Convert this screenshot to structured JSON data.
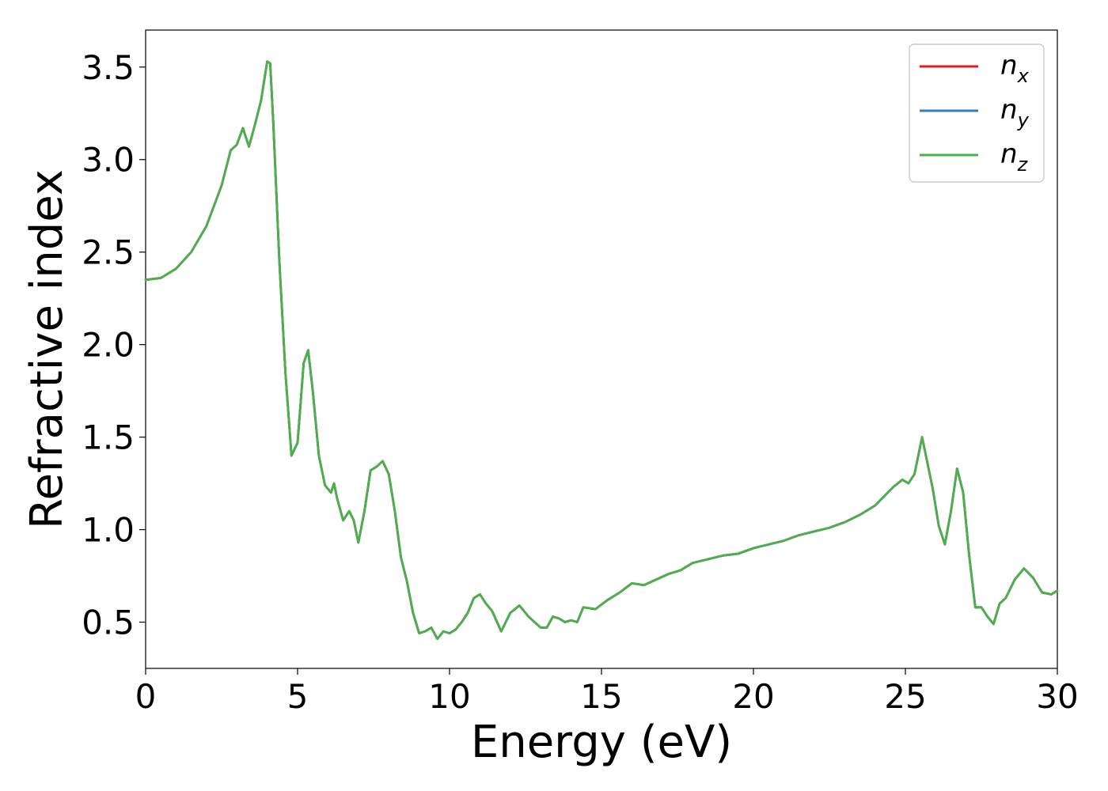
{
  "chart_data": {
    "type": "line",
    "title": "",
    "xlabel": "Energy (eV)",
    "ylabel": "Refractive index",
    "xlim": [
      0,
      30
    ],
    "ylim": [
      0.25,
      3.7
    ],
    "x_ticks": [
      0,
      5,
      10,
      15,
      20,
      25,
      30
    ],
    "y_ticks": [
      0.5,
      1.0,
      1.5,
      2.0,
      2.5,
      3.0,
      3.5
    ],
    "x_tick_labels": [
      "0",
      "5",
      "10",
      "15",
      "20",
      "25",
      "30"
    ],
    "y_tick_labels": [
      "0.5",
      "1.0",
      "1.5",
      "2.0",
      "2.5",
      "3.0",
      "3.5"
    ],
    "grid": false,
    "legend_position": "top-right",
    "series": [
      {
        "name": "n_x",
        "legend_base": "n",
        "legend_sub": "x",
        "color": "#e41a1c",
        "x": [
          0,
          0.5,
          1.0,
          1.5,
          2.0,
          2.5,
          2.8,
          3.0,
          3.2,
          3.4,
          3.6,
          3.8,
          4.0,
          4.1,
          4.2,
          4.4,
          4.6,
          4.8,
          5.0,
          5.2,
          5.35,
          5.5,
          5.7,
          5.9,
          6.1,
          6.2,
          6.3,
          6.5,
          6.7,
          6.85,
          7.0,
          7.2,
          7.4,
          7.6,
          7.8,
          8.0,
          8.2,
          8.4,
          8.6,
          8.8,
          9.0,
          9.2,
          9.4,
          9.6,
          9.8,
          10.0,
          10.2,
          10.4,
          10.6,
          10.8,
          11.0,
          11.2,
          11.4,
          11.7,
          12.0,
          12.3,
          12.6,
          13.0,
          13.2,
          13.4,
          13.6,
          13.8,
          14.0,
          14.2,
          14.4,
          14.8,
          15.2,
          15.6,
          16.0,
          16.4,
          16.8,
          17.2,
          17.6,
          18.0,
          18.5,
          19.0,
          19.5,
          20.0,
          20.5,
          21.0,
          21.5,
          22.0,
          22.5,
          23.0,
          23.5,
          24.0,
          24.3,
          24.6,
          24.9,
          25.1,
          25.3,
          25.55,
          25.7,
          25.9,
          26.1,
          26.3,
          26.5,
          26.7,
          26.9,
          27.1,
          27.3,
          27.5,
          27.7,
          27.9,
          28.1,
          28.3,
          28.6,
          28.9,
          29.2,
          29.5,
          29.8,
          30.0
        ],
        "y": [
          2.35,
          2.36,
          2.41,
          2.5,
          2.64,
          2.86,
          3.05,
          3.08,
          3.17,
          3.07,
          3.19,
          3.32,
          3.53,
          3.52,
          3.2,
          2.45,
          1.85,
          1.4,
          1.47,
          1.9,
          1.97,
          1.75,
          1.4,
          1.24,
          1.2,
          1.25,
          1.17,
          1.05,
          1.1,
          1.05,
          0.93,
          1.1,
          1.32,
          1.34,
          1.37,
          1.3,
          1.1,
          0.85,
          0.72,
          0.55,
          0.44,
          0.45,
          0.47,
          0.41,
          0.45,
          0.44,
          0.46,
          0.5,
          0.55,
          0.63,
          0.65,
          0.6,
          0.56,
          0.45,
          0.55,
          0.59,
          0.53,
          0.47,
          0.47,
          0.53,
          0.52,
          0.5,
          0.51,
          0.5,
          0.58,
          0.57,
          0.62,
          0.66,
          0.71,
          0.7,
          0.73,
          0.76,
          0.78,
          0.82,
          0.84,
          0.86,
          0.87,
          0.9,
          0.92,
          0.94,
          0.97,
          0.99,
          1.01,
          1.04,
          1.08,
          1.13,
          1.18,
          1.23,
          1.27,
          1.25,
          1.3,
          1.5,
          1.38,
          1.22,
          1.02,
          0.92,
          1.1,
          1.33,
          1.2,
          0.86,
          0.58,
          0.58,
          0.53,
          0.49,
          0.6,
          0.63,
          0.73,
          0.79,
          0.74,
          0.66,
          0.65,
          0.67
        ]
      },
      {
        "name": "n_y",
        "legend_base": "n",
        "legend_sub": "y",
        "color": "#377eb8",
        "x": [
          0,
          0.5,
          1.0,
          1.5,
          2.0,
          2.5,
          2.8,
          3.0,
          3.2,
          3.4,
          3.6,
          3.8,
          4.0,
          4.1,
          4.2,
          4.4,
          4.6,
          4.8,
          5.0,
          5.2,
          5.35,
          5.5,
          5.7,
          5.9,
          6.1,
          6.2,
          6.3,
          6.5,
          6.7,
          6.85,
          7.0,
          7.2,
          7.4,
          7.6,
          7.8,
          8.0,
          8.2,
          8.4,
          8.6,
          8.8,
          9.0,
          9.2,
          9.4,
          9.6,
          9.8,
          10.0,
          10.2,
          10.4,
          10.6,
          10.8,
          11.0,
          11.2,
          11.4,
          11.7,
          12.0,
          12.3,
          12.6,
          13.0,
          13.2,
          13.4,
          13.6,
          13.8,
          14.0,
          14.2,
          14.4,
          14.8,
          15.2,
          15.6,
          16.0,
          16.4,
          16.8,
          17.2,
          17.6,
          18.0,
          18.5,
          19.0,
          19.5,
          20.0,
          20.5,
          21.0,
          21.5,
          22.0,
          22.5,
          23.0,
          23.5,
          24.0,
          24.3,
          24.6,
          24.9,
          25.1,
          25.3,
          25.55,
          25.7,
          25.9,
          26.1,
          26.3,
          26.5,
          26.7,
          26.9,
          27.1,
          27.3,
          27.5,
          27.7,
          27.9,
          28.1,
          28.3,
          28.6,
          28.9,
          29.2,
          29.5,
          29.8,
          30.0
        ],
        "y": [
          2.35,
          2.36,
          2.41,
          2.5,
          2.64,
          2.86,
          3.05,
          3.08,
          3.17,
          3.07,
          3.19,
          3.32,
          3.53,
          3.52,
          3.2,
          2.45,
          1.85,
          1.4,
          1.47,
          1.9,
          1.97,
          1.75,
          1.4,
          1.24,
          1.2,
          1.25,
          1.17,
          1.05,
          1.1,
          1.05,
          0.93,
          1.1,
          1.32,
          1.34,
          1.37,
          1.3,
          1.1,
          0.85,
          0.72,
          0.55,
          0.44,
          0.45,
          0.47,
          0.41,
          0.45,
          0.44,
          0.46,
          0.5,
          0.55,
          0.63,
          0.65,
          0.6,
          0.56,
          0.45,
          0.55,
          0.59,
          0.53,
          0.47,
          0.47,
          0.53,
          0.52,
          0.5,
          0.51,
          0.5,
          0.58,
          0.57,
          0.62,
          0.66,
          0.71,
          0.7,
          0.73,
          0.76,
          0.78,
          0.82,
          0.84,
          0.86,
          0.87,
          0.9,
          0.92,
          0.94,
          0.97,
          0.99,
          1.01,
          1.04,
          1.08,
          1.13,
          1.18,
          1.23,
          1.27,
          1.25,
          1.3,
          1.5,
          1.38,
          1.22,
          1.02,
          0.92,
          1.1,
          1.33,
          1.2,
          0.86,
          0.58,
          0.58,
          0.53,
          0.49,
          0.6,
          0.63,
          0.73,
          0.79,
          0.74,
          0.66,
          0.65,
          0.67
        ]
      },
      {
        "name": "n_z",
        "legend_base": "n",
        "legend_sub": "z",
        "color": "#4daf4a",
        "x": [
          0,
          0.5,
          1.0,
          1.5,
          2.0,
          2.5,
          2.8,
          3.0,
          3.2,
          3.4,
          3.6,
          3.8,
          4.0,
          4.1,
          4.2,
          4.4,
          4.6,
          4.8,
          5.0,
          5.2,
          5.35,
          5.5,
          5.7,
          5.9,
          6.1,
          6.2,
          6.3,
          6.5,
          6.7,
          6.85,
          7.0,
          7.2,
          7.4,
          7.6,
          7.8,
          8.0,
          8.2,
          8.4,
          8.6,
          8.8,
          9.0,
          9.2,
          9.4,
          9.6,
          9.8,
          10.0,
          10.2,
          10.4,
          10.6,
          10.8,
          11.0,
          11.2,
          11.4,
          11.7,
          12.0,
          12.3,
          12.6,
          13.0,
          13.2,
          13.4,
          13.6,
          13.8,
          14.0,
          14.2,
          14.4,
          14.8,
          15.2,
          15.6,
          16.0,
          16.4,
          16.8,
          17.2,
          17.6,
          18.0,
          18.5,
          19.0,
          19.5,
          20.0,
          20.5,
          21.0,
          21.5,
          22.0,
          22.5,
          23.0,
          23.5,
          24.0,
          24.3,
          24.6,
          24.9,
          25.1,
          25.3,
          25.55,
          25.7,
          25.9,
          26.1,
          26.3,
          26.5,
          26.7,
          26.9,
          27.1,
          27.3,
          27.5,
          27.7,
          27.9,
          28.1,
          28.3,
          28.6,
          28.9,
          29.2,
          29.5,
          29.8,
          30.0
        ],
        "y": [
          2.35,
          2.36,
          2.41,
          2.5,
          2.64,
          2.86,
          3.05,
          3.08,
          3.17,
          3.07,
          3.19,
          3.32,
          3.53,
          3.52,
          3.2,
          2.45,
          1.85,
          1.4,
          1.47,
          1.9,
          1.97,
          1.75,
          1.4,
          1.24,
          1.2,
          1.25,
          1.17,
          1.05,
          1.1,
          1.05,
          0.93,
          1.1,
          1.32,
          1.34,
          1.37,
          1.3,
          1.1,
          0.85,
          0.72,
          0.55,
          0.44,
          0.45,
          0.47,
          0.41,
          0.45,
          0.44,
          0.46,
          0.5,
          0.55,
          0.63,
          0.65,
          0.6,
          0.56,
          0.45,
          0.55,
          0.59,
          0.53,
          0.47,
          0.47,
          0.53,
          0.52,
          0.5,
          0.51,
          0.5,
          0.58,
          0.57,
          0.62,
          0.66,
          0.71,
          0.7,
          0.73,
          0.76,
          0.78,
          0.82,
          0.84,
          0.86,
          0.87,
          0.9,
          0.92,
          0.94,
          0.97,
          0.99,
          1.01,
          1.04,
          1.08,
          1.13,
          1.18,
          1.23,
          1.27,
          1.25,
          1.3,
          1.5,
          1.38,
          1.22,
          1.02,
          0.92,
          1.1,
          1.33,
          1.2,
          0.86,
          0.58,
          0.58,
          0.53,
          0.49,
          0.6,
          0.63,
          0.73,
          0.79,
          0.74,
          0.66,
          0.65,
          0.67
        ]
      }
    ]
  }
}
